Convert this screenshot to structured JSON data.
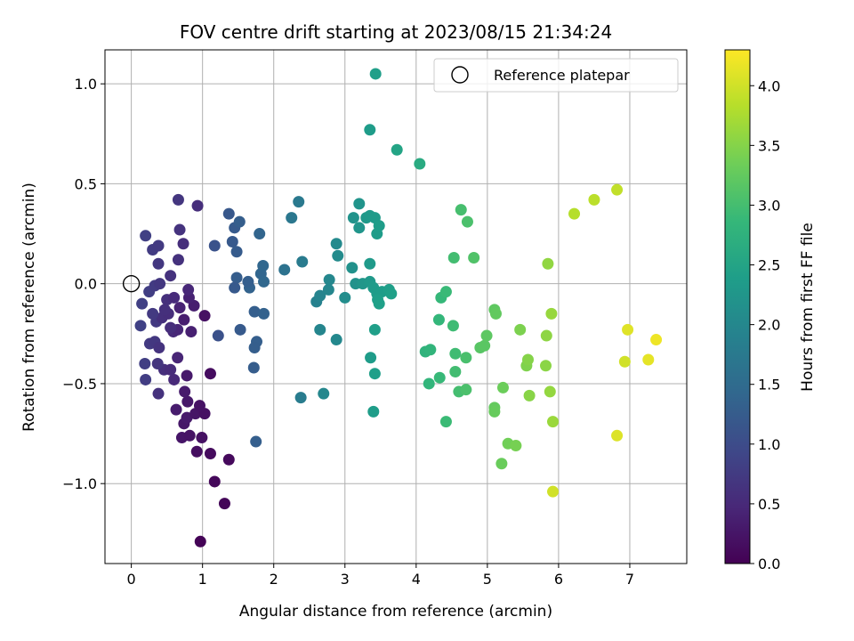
{
  "chart_data": {
    "type": "scatter",
    "title": "FOV centre drift starting at 2023/08/15 21:34:24",
    "xlabel": "Angular distance from reference (arcmin)",
    "ylabel": "Rotation from reference (arcmin)",
    "xlim": [
      -0.37,
      7.8
    ],
    "ylim": [
      -1.4,
      1.17
    ],
    "xticks": [
      0,
      1,
      2,
      3,
      4,
      5,
      6,
      7
    ],
    "xtick_labels": [
      "0",
      "1",
      "2",
      "3",
      "4",
      "5",
      "6",
      "7"
    ],
    "yticks": [
      -1.0,
      -0.5,
      0.0,
      0.5,
      1.0
    ],
    "ytick_labels": [
      "−1.0",
      "−0.5",
      "0.0",
      "0.5",
      "1.0"
    ],
    "grid": true,
    "legend": {
      "placement": "top-right",
      "entries": [
        "Reference platepar"
      ]
    },
    "reference_point": {
      "x": 0.0,
      "y": 0.0,
      "marker": "open-circle"
    },
    "colorbar": {
      "label": "Hours from first FF file",
      "range": [
        0.0,
        4.3
      ],
      "ticks": [
        0.0,
        0.5,
        1.0,
        1.5,
        2.0,
        2.5,
        3.0,
        3.5,
        4.0
      ],
      "tick_labels": [
        "0.0",
        "0.5",
        "1.0",
        "1.5",
        "2.0",
        "2.5",
        "3.0",
        "3.5",
        "4.0"
      ],
      "colormap": "viridis",
      "colors": [
        "#440154",
        "#482878",
        "#3e4989",
        "#31688e",
        "#26828e",
        "#1f9e89",
        "#35b779",
        "#6ece58",
        "#b5de2b",
        "#fde725"
      ]
    },
    "points": [
      [
        0.97,
        -1.29,
        0.03
      ],
      [
        1.31,
        -1.1,
        0.05
      ],
      [
        1.17,
        -0.99,
        0.08
      ],
      [
        1.37,
        -0.88,
        0.1
      ],
      [
        1.11,
        -0.85,
        0.12
      ],
      [
        0.92,
        -0.84,
        0.16
      ],
      [
        0.99,
        -0.77,
        0.2
      ],
      [
        0.71,
        -0.77,
        0.25
      ],
      [
        0.82,
        -0.76,
        0.22
      ],
      [
        0.74,
        -0.7,
        0.27
      ],
      [
        0.78,
        -0.67,
        0.3
      ],
      [
        0.9,
        -0.65,
        0.24
      ],
      [
        1.03,
        -0.65,
        0.18
      ],
      [
        0.63,
        -0.63,
        0.33
      ],
      [
        0.96,
        -0.61,
        0.21
      ],
      [
        0.79,
        -0.59,
        0.28
      ],
      [
        0.75,
        -0.54,
        0.32
      ],
      [
        0.38,
        -0.55,
        0.62
      ],
      [
        0.2,
        -0.48,
        0.78
      ],
      [
        0.6,
        -0.48,
        0.5
      ],
      [
        0.78,
        -0.46,
        0.3
      ],
      [
        1.11,
        -0.45,
        0.14
      ],
      [
        0.46,
        -0.43,
        0.58
      ],
      [
        0.55,
        -0.43,
        0.54
      ],
      [
        0.19,
        -0.4,
        0.8
      ],
      [
        0.37,
        -0.4,
        0.66
      ],
      [
        0.65,
        -0.37,
        0.45
      ],
      [
        0.26,
        -0.3,
        0.74
      ],
      [
        0.33,
        -0.29,
        0.7
      ],
      [
        0.39,
        -0.32,
        0.64
      ],
      [
        0.84,
        -0.24,
        0.38
      ],
      [
        0.59,
        -0.24,
        0.5
      ],
      [
        0.65,
        -0.23,
        0.46
      ],
      [
        0.55,
        -0.22,
        0.56
      ],
      [
        0.13,
        -0.21,
        0.84
      ],
      [
        0.35,
        -0.19,
        0.72
      ],
      [
        0.74,
        -0.18,
        0.36
      ],
      [
        0.43,
        -0.17,
        0.6
      ],
      [
        0.3,
        -0.15,
        0.74
      ],
      [
        0.52,
        -0.15,
        0.56
      ],
      [
        0.47,
        -0.13,
        0.6
      ],
      [
        0.68,
        -0.12,
        0.42
      ],
      [
        1.03,
        -0.16,
        0.2
      ],
      [
        0.15,
        -0.1,
        0.82
      ],
      [
        0.88,
        -0.11,
        0.36
      ],
      [
        0.5,
        -0.08,
        0.6
      ],
      [
        0.6,
        -0.07,
        0.52
      ],
      [
        0.81,
        -0.07,
        0.4
      ],
      [
        0.25,
        -0.04,
        0.8
      ],
      [
        0.33,
        -0.01,
        0.76
      ],
      [
        0.4,
        0.0,
        0.7
      ],
      [
        0.8,
        -0.03,
        0.48
      ],
      [
        0.55,
        0.04,
        0.62
      ],
      [
        0.38,
        0.1,
        0.7
      ],
      [
        0.66,
        0.12,
        0.62
      ],
      [
        0.3,
        0.17,
        0.76
      ],
      [
        0.38,
        0.19,
        0.74
      ],
      [
        0.73,
        0.2,
        0.56
      ],
      [
        0.2,
        0.24,
        0.82
      ],
      [
        0.68,
        0.27,
        0.64
      ],
      [
        0.93,
        0.39,
        0.56
      ],
      [
        0.66,
        0.42,
        0.68
      ],
      [
        1.17,
        0.19,
        1.1
      ],
      [
        1.42,
        0.21,
        1.2
      ],
      [
        1.45,
        0.28,
        1.22
      ],
      [
        1.37,
        0.35,
        1.18
      ],
      [
        1.52,
        0.31,
        1.28
      ],
      [
        1.48,
        0.16,
        1.24
      ],
      [
        1.48,
        0.03,
        1.26
      ],
      [
        1.45,
        -0.02,
        1.2
      ],
      [
        1.66,
        -0.02,
        1.36
      ],
      [
        1.64,
        0.01,
        1.3
      ],
      [
        1.82,
        0.05,
        1.4
      ],
      [
        1.86,
        0.01,
        1.44
      ],
      [
        1.85,
        0.09,
        1.42
      ],
      [
        1.8,
        0.25,
        1.38
      ],
      [
        1.73,
        -0.14,
        1.3
      ],
      [
        1.86,
        -0.15,
        1.34
      ],
      [
        1.53,
        -0.23,
        1.22
      ],
      [
        1.76,
        -0.29,
        1.3
      ],
      [
        1.73,
        -0.32,
        1.28
      ],
      [
        1.72,
        -0.42,
        1.26
      ],
      [
        1.22,
        -0.26,
        1.08
      ],
      [
        1.75,
        -0.79,
        1.3
      ],
      [
        2.15,
        0.07,
        1.62
      ],
      [
        2.25,
        0.33,
        1.7
      ],
      [
        2.35,
        0.41,
        1.74
      ],
      [
        2.4,
        0.11,
        1.78
      ],
      [
        2.38,
        -0.57,
        1.8
      ],
      [
        2.6,
        -0.09,
        1.9
      ],
      [
        2.65,
        -0.06,
        1.94
      ],
      [
        2.77,
        -0.03,
        1.98
      ],
      [
        2.78,
        0.02,
        2.0
      ],
      [
        2.65,
        -0.23,
        1.96
      ],
      [
        2.88,
        -0.28,
        2.02
      ],
      [
        2.7,
        -0.55,
        2.0
      ],
      [
        2.88,
        0.2,
        2.04
      ],
      [
        2.9,
        0.14,
        2.06
      ],
      [
        3.0,
        -0.07,
        2.1
      ],
      [
        3.1,
        0.08,
        2.16
      ],
      [
        3.12,
        0.33,
        2.2
      ],
      [
        3.15,
        0.0,
        2.18
      ],
      [
        3.2,
        0.4,
        2.22
      ],
      [
        3.2,
        0.28,
        2.24
      ],
      [
        3.3,
        0.33,
        2.3
      ],
      [
        3.35,
        0.34,
        2.32
      ],
      [
        3.42,
        0.33,
        2.34
      ],
      [
        3.45,
        0.25,
        2.36
      ],
      [
        3.48,
        0.29,
        2.38
      ],
      [
        3.25,
        0.0,
        2.26
      ],
      [
        3.35,
        0.01,
        2.3
      ],
      [
        3.35,
        0.1,
        2.32
      ],
      [
        3.4,
        -0.02,
        2.34
      ],
      [
        3.45,
        -0.05,
        2.36
      ],
      [
        3.52,
        -0.04,
        2.38
      ],
      [
        3.62,
        -0.03,
        2.4
      ],
      [
        3.65,
        -0.05,
        2.42
      ],
      [
        3.46,
        -0.08,
        2.4
      ],
      [
        3.48,
        -0.1,
        2.42
      ],
      [
        3.42,
        -0.23,
        2.4
      ],
      [
        3.36,
        -0.37,
        2.36
      ],
      [
        3.42,
        -0.45,
        2.4
      ],
      [
        3.4,
        -0.64,
        2.38
      ],
      [
        3.43,
        1.05,
        2.4
      ],
      [
        3.35,
        0.77,
        2.36
      ],
      [
        3.73,
        0.67,
        2.5
      ],
      [
        4.05,
        0.6,
        2.62
      ],
      [
        4.13,
        -0.34,
        2.78
      ],
      [
        4.2,
        -0.33,
        2.8
      ],
      [
        4.18,
        -0.5,
        2.82
      ],
      [
        4.32,
        -0.18,
        2.84
      ],
      [
        4.35,
        -0.07,
        2.86
      ],
      [
        4.42,
        -0.04,
        2.9
      ],
      [
        4.33,
        -0.47,
        2.88
      ],
      [
        4.42,
        -0.69,
        2.92
      ],
      [
        4.52,
        -0.21,
        2.94
      ],
      [
        4.55,
        -0.35,
        2.96
      ],
      [
        4.55,
        -0.44,
        2.98
      ],
      [
        4.6,
        -0.54,
        3.0
      ],
      [
        4.7,
        -0.37,
        3.04
      ],
      [
        4.7,
        -0.53,
        3.06
      ],
      [
        4.53,
        0.13,
        2.98
      ],
      [
        4.63,
        0.37,
        3.02
      ],
      [
        4.72,
        0.31,
        3.06
      ],
      [
        4.81,
        0.13,
        3.1
      ],
      [
        4.9,
        -0.32,
        3.16
      ],
      [
        4.96,
        -0.31,
        3.18
      ],
      [
        4.99,
        -0.26,
        3.2
      ],
      [
        5.1,
        -0.13,
        3.22
      ],
      [
        5.12,
        -0.15,
        3.24
      ],
      [
        5.1,
        -0.62,
        3.26
      ],
      [
        5.1,
        -0.64,
        3.28
      ],
      [
        5.2,
        -0.9,
        3.3
      ],
      [
        5.22,
        -0.52,
        3.32
      ],
      [
        5.29,
        -0.8,
        3.36
      ],
      [
        5.4,
        -0.81,
        3.4
      ],
      [
        5.46,
        -0.23,
        3.44
      ],
      [
        5.55,
        -0.41,
        3.46
      ],
      [
        5.57,
        -0.38,
        3.5
      ],
      [
        5.59,
        -0.56,
        3.52
      ],
      [
        5.82,
        -0.41,
        3.54
      ],
      [
        5.83,
        -0.26,
        3.56
      ],
      [
        5.85,
        0.1,
        3.58
      ],
      [
        5.88,
        -0.54,
        3.6
      ],
      [
        5.9,
        -0.15,
        3.62
      ],
      [
        5.92,
        -0.69,
        3.64
      ],
      [
        5.92,
        -1.04,
        4.0
      ],
      [
        6.22,
        0.35,
        3.82
      ],
      [
        6.5,
        0.42,
        3.86
      ],
      [
        6.82,
        0.47,
        3.9
      ],
      [
        6.82,
        -0.76,
        4.08
      ],
      [
        6.93,
        -0.39,
        4.0
      ],
      [
        6.97,
        -0.23,
        4.1
      ],
      [
        7.26,
        -0.38,
        4.14
      ],
      [
        7.37,
        -0.28,
        4.2
      ]
    ]
  }
}
